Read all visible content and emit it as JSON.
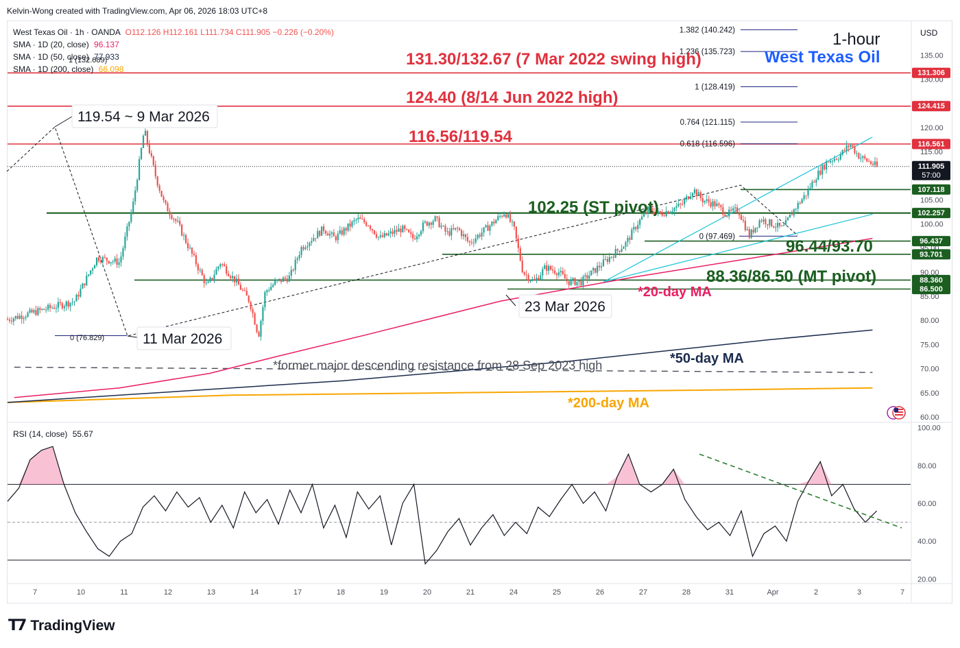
{
  "credit": "Kelvin-Wong created with TradingView.com, Apr 06, 2026 18:03 UTC+8",
  "legend": {
    "symbol": "West Texas Oil · 1h · OANDA",
    "ohlc": "O112.126  H112.161  L111.734  C111.905  −0.226 (−0.20%)",
    "sma20_label": "SMA · 1D (20, close)",
    "sma20_value": "96.137",
    "sma50_label": "SMA · 1D (50, close)",
    "sma50_value": "77.933",
    "sma200_label": "SMA · 1D (200, close)",
    "sma200_value": "66.098",
    "rsi_label": "RSI (14, close)",
    "rsi_value": "55.67"
  },
  "colors": {
    "up": "#26a69a",
    "down": "#ef5350",
    "resistance": "#e0313e",
    "support": "#1b5e20",
    "channel": "#26c6da",
    "sma20": "#e91e63",
    "sma50": "#1a2b4c",
    "sma200": "#f7a600",
    "fib": "#1a237e"
  },
  "titles": {
    "timeframe": "1-hour",
    "instrument": "West Texas Oil"
  },
  "currency": "USD",
  "brand": "TradingView",
  "annotations": {
    "r1": "131.30/132.67 (7 Mar 2022 swing high)",
    "r2": "124.40 (8/14 Jun 2022 high)",
    "r3": "116.56/119.54",
    "s_pivot": "102.25 (ST pivot)",
    "s_zone": "96.44/93.70",
    "s_mt": "88.36/86.50 (MT pivot)",
    "ma20": "*20-day MA",
    "ma50": "*50-day MA",
    "ma200": "*200-day MA",
    "former_res": "*former major descending resistance from 28 Sep 2023 high",
    "c_high": "119.54 ~ 9 Mar 2026",
    "c_low": "11 Mar 2026",
    "c_low2": "23 Mar 2026"
  },
  "fib_levels": [
    {
      "label": "1.382 (140.242)"
    },
    {
      "label": "1.236 (135.723)"
    },
    {
      "label": "1 (128.419)"
    },
    {
      "label": "0.764 (121.115)"
    },
    {
      "label": "0.618 (116.596)"
    },
    {
      "label": "0 (97.469)"
    }
  ],
  "fib_left": [
    {
      "label": "1 (132.689)"
    },
    {
      "label": "0 (76.829)"
    }
  ],
  "price_badges": [
    {
      "value": "131.306",
      "fill": "#e0313e"
    },
    {
      "value": "124.415",
      "fill": "#e0313e"
    },
    {
      "value": "116.561",
      "fill": "#e0313e"
    },
    {
      "value": "111.905",
      "sub": "57:00",
      "fill": "#131722"
    },
    {
      "value": "107.118",
      "fill": "#1b5e20"
    },
    {
      "value": "102.257",
      "fill": "#1b5e20"
    },
    {
      "value": "96.437",
      "fill": "#1b5e20"
    },
    {
      "value": "93.701",
      "fill": "#1b5e20"
    },
    {
      "value": "88.360",
      "fill": "#1b5e20"
    },
    {
      "value": "86.500",
      "fill": "#1b5e20"
    }
  ],
  "chart_data": [
    {
      "type": "candlestick",
      "title": "West Texas Oil · 1h · OANDA",
      "ylim": [
        59,
        142
      ],
      "y_ticks": [
        60,
        65,
        70,
        75,
        80,
        85,
        90,
        95,
        100,
        105,
        110,
        115,
        120,
        125,
        130,
        135
      ],
      "x_ticks": [
        "7",
        "10",
        "11",
        "12",
        "13",
        "14",
        "17",
        "18",
        "19",
        "20",
        "21",
        "24",
        "25",
        "26",
        "27",
        "28",
        "31",
        "Apr",
        "2",
        "3",
        "7"
      ],
      "price_path": [
        [
          0,
          80.2
        ],
        [
          3,
          84
        ],
        [
          4,
          93
        ],
        [
          5,
          92
        ],
        [
          5.6,
          104
        ],
        [
          6.1,
          119.5
        ],
        [
          6.6,
          110
        ],
        [
          7,
          104
        ],
        [
          7.6,
          100
        ],
        [
          8.2,
          94
        ],
        [
          8.9,
          87
        ],
        [
          9.5,
          92
        ],
        [
          10.2,
          88
        ],
        [
          10.8,
          84
        ],
        [
          11.2,
          76.8
        ],
        [
          11.5,
          86
        ],
        [
          12,
          88
        ],
        [
          12.6,
          89
        ],
        [
          13.1,
          95
        ],
        [
          13.6,
          97
        ],
        [
          14.1,
          99
        ],
        [
          14.6,
          97
        ],
        [
          15.1,
          99
        ],
        [
          15.6,
          101
        ],
        [
          16.1,
          100
        ],
        [
          16.6,
          97
        ],
        [
          17.1,
          98
        ],
        [
          17.6,
          99
        ],
        [
          18.1,
          97
        ],
        [
          18.6,
          100
        ],
        [
          19.1,
          101
        ],
        [
          19.6,
          98
        ],
        [
          20.1,
          99
        ],
        [
          20.6,
          96
        ],
        [
          21.1,
          98
        ],
        [
          21.6,
          100
        ],
        [
          22.2,
          102.5
        ],
        [
          22.6,
          99
        ],
        [
          23,
          90
        ],
        [
          23.5,
          88
        ],
        [
          24,
          91
        ],
        [
          24.6,
          90
        ],
        [
          25,
          88
        ],
        [
          25.6,
          88
        ],
        [
          26.1,
          90
        ],
        [
          26.6,
          92
        ],
        [
          27.1,
          94
        ],
        [
          27.6,
          96
        ],
        [
          28.1,
          100
        ],
        [
          28.6,
          103
        ],
        [
          29.1,
          102
        ],
        [
          29.6,
          103
        ],
        [
          30.1,
          104
        ],
        [
          30.6,
          107.2
        ],
        [
          31,
          105
        ],
        [
          31.6,
          104
        ],
        [
          32.1,
          102
        ],
        [
          32.6,
          103
        ],
        [
          33.1,
          97.5
        ],
        [
          33.6,
          101
        ],
        [
          34.1,
          100
        ],
        [
          34.6,
          99
        ],
        [
          35.1,
          103
        ],
        [
          35.6,
          106
        ],
        [
          36.1,
          110
        ],
        [
          36.6,
          113
        ],
        [
          37.1,
          114
        ],
        [
          37.6,
          116.5
        ],
        [
          38,
          114
        ],
        [
          38.4,
          113
        ],
        [
          38.8,
          111.9
        ]
      ],
      "sma20": [
        [
          0.3,
          64
        ],
        [
          5,
          66
        ],
        [
          9,
          69
        ],
        [
          12,
          72.5
        ],
        [
          16,
          77
        ],
        [
          22,
          84
        ],
        [
          28,
          89
        ],
        [
          34,
          93.5
        ],
        [
          38.6,
          97
        ]
      ],
      "sma50": [
        [
          0,
          63
        ],
        [
          5,
          64.5
        ],
        [
          10,
          66
        ],
        [
          15,
          67.5
        ],
        [
          20,
          69.5
        ],
        [
          25,
          71.5
        ],
        [
          30,
          74
        ],
        [
          34,
          76
        ],
        [
          38.6,
          78
        ]
      ],
      "sma200": [
        [
          0,
          63
        ],
        [
          10,
          64.5
        ],
        [
          20,
          65
        ],
        [
          30,
          65.5
        ],
        [
          38.6,
          66
        ]
      ],
      "former_resistance": [
        [
          0.3,
          70.3
        ],
        [
          38.6,
          69.2
        ]
      ],
      "channel_upper": [
        [
          26.6,
          88
        ],
        [
          38.6,
          118
        ]
      ],
      "channel_lower": [
        [
          26.6,
          88
        ],
        [
          38.6,
          102
        ]
      ]
    },
    {
      "type": "line",
      "title": "RSI (14, close)",
      "ylim": [
        18,
        102
      ],
      "y_ticks": [
        20,
        40,
        60,
        80,
        100
      ],
      "levels": [
        70,
        50,
        30
      ],
      "values": [
        [
          0,
          61
        ],
        [
          1,
          68
        ],
        [
          2,
          83
        ],
        [
          3,
          88
        ],
        [
          4,
          90
        ],
        [
          5,
          70
        ],
        [
          6,
          55
        ],
        [
          7,
          45
        ],
        [
          8,
          36
        ],
        [
          9,
          32
        ],
        [
          10,
          40
        ],
        [
          11,
          44
        ],
        [
          12,
          58
        ],
        [
          13,
          64
        ],
        [
          14,
          56
        ],
        [
          15,
          66
        ],
        [
          16,
          58
        ],
        [
          17,
          63
        ],
        [
          18,
          50
        ],
        [
          19,
          59
        ],
        [
          20,
          47
        ],
        [
          21,
          66
        ],
        [
          22,
          55
        ],
        [
          23,
          62
        ],
        [
          24,
          49
        ],
        [
          25,
          67
        ],
        [
          26,
          55
        ],
        [
          27,
          70
        ],
        [
          28,
          47
        ],
        [
          29,
          59
        ],
        [
          30,
          42
        ],
        [
          31,
          66
        ],
        [
          32,
          57
        ],
        [
          33,
          64
        ],
        [
          34,
          38
        ],
        [
          35,
          60
        ],
        [
          36,
          70
        ],
        [
          37,
          28
        ],
        [
          38,
          35
        ],
        [
          39,
          45
        ],
        [
          40,
          52
        ],
        [
          41,
          38
        ],
        [
          42,
          47
        ],
        [
          43,
          54
        ],
        [
          44,
          43
        ],
        [
          45,
          50
        ],
        [
          46,
          44
        ],
        [
          47,
          58
        ],
        [
          48,
          53
        ],
        [
          49,
          62
        ],
        [
          50,
          70
        ],
        [
          51,
          60
        ],
        [
          52,
          66
        ],
        [
          53,
          56
        ],
        [
          54,
          74
        ],
        [
          55,
          86
        ],
        [
          56,
          70
        ],
        [
          57,
          66
        ],
        [
          58,
          70
        ],
        [
          59,
          78
        ],
        [
          60,
          62
        ],
        [
          61,
          53
        ],
        [
          62,
          46
        ],
        [
          63,
          50
        ],
        [
          64,
          43
        ],
        [
          65,
          56
        ],
        [
          66,
          32
        ],
        [
          67,
          44
        ],
        [
          68,
          48
        ],
        [
          69,
          40
        ],
        [
          70,
          61
        ],
        [
          71,
          72
        ],
        [
          72,
          82
        ],
        [
          73,
          64
        ],
        [
          74,
          70
        ],
        [
          75,
          57
        ],
        [
          76,
          50
        ],
        [
          77,
          56
        ]
      ]
    }
  ]
}
